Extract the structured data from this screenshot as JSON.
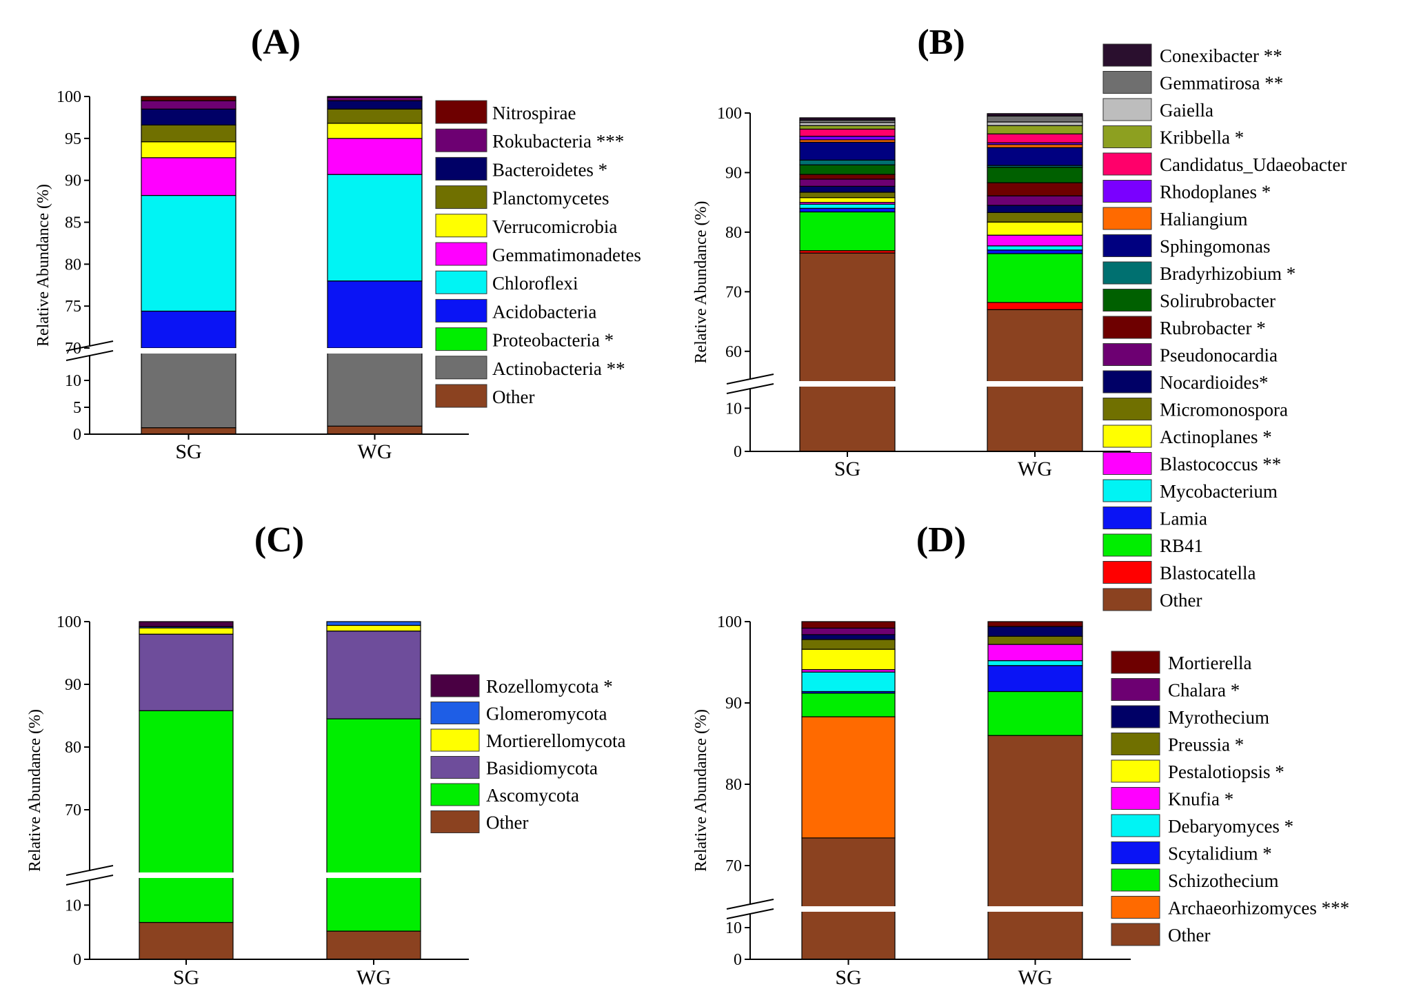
{
  "chart_data": [
    {
      "panel": "A",
      "type": "bar",
      "stacked": true,
      "title": "(A)",
      "ylabel": "Relative Abundance (%)",
      "xlabel": "",
      "categories": [
        "SG",
        "WG"
      ],
      "axis_break": {
        "lower_range": [
          0,
          15
        ],
        "upper_range": [
          70,
          100
        ]
      },
      "yticks_lower": [
        0,
        5,
        10
      ],
      "yticks_upper": [
        70,
        75,
        80,
        85,
        90,
        95,
        100
      ],
      "series": [
        {
          "name": "Other",
          "color": "#8B4220",
          "values": [
            1.2,
            1.5
          ]
        },
        {
          "name": "Actinobacteria **",
          "color": "#6F6F6F",
          "values": [
            64.5,
            64.5
          ]
        },
        {
          "name": "Proteobacteria *",
          "color": "#00EE00",
          "values": [
            0,
            0
          ]
        },
        {
          "name": "Acidobacteria",
          "color": "#0A14F5",
          "values": [
            8.7,
            12
          ]
        },
        {
          "name": "Chloroflexi",
          "color": "#00F4F4",
          "values": [
            13.8,
            12.7
          ]
        },
        {
          "name": "Gemmatimonadetes",
          "color": "#FF00FF",
          "values": [
            4.5,
            4.3
          ]
        },
        {
          "name": "Verrucomicrobia",
          "color": "#FFFF00",
          "values": [
            1.9,
            1.8
          ]
        },
        {
          "name": "Planctomycetes",
          "color": "#707000",
          "values": [
            2.0,
            1.7
          ]
        },
        {
          "name": "Bacteroidetes *",
          "color": "#000066",
          "values": [
            1.9,
            1.0
          ]
        },
        {
          "name": "Rokubacteria ***",
          "color": "#6D0072",
          "values": [
            1.0,
            0.4
          ]
        },
        {
          "name": "Nitrospirae",
          "color": "#6E0000",
          "values": [
            0.5,
            0.1
          ]
        }
      ]
    },
    {
      "panel": "B",
      "type": "bar",
      "stacked": true,
      "title": "(B)",
      "ylabel": "Relative Abundance (%)",
      "xlabel": "",
      "categories": [
        "SG",
        "WG"
      ],
      "axis_break": {
        "lower_range": [
          0,
          15
        ],
        "upper_range": [
          55,
          100
        ]
      },
      "yticks_lower": [
        0,
        10
      ],
      "yticks_upper": [
        60,
        70,
        80,
        90,
        100
      ],
      "series": [
        {
          "name": "Other",
          "color": "#8B4220",
          "values": [
            76.5,
            67
          ]
        },
        {
          "name": "Blastocatella",
          "color": "#FF0000",
          "values": [
            0.4,
            1.2
          ]
        },
        {
          "name": "RB41",
          "color": "#00EE00",
          "values": [
            6.5,
            8.2
          ]
        },
        {
          "name": "Lamia",
          "color": "#0A14F5",
          "values": [
            0.6,
            0.6
          ]
        },
        {
          "name": "Mycobacterium",
          "color": "#00F4F4",
          "values": [
            0.7,
            0.7
          ]
        },
        {
          "name": "Blastococcus **",
          "color": "#FF00FF",
          "values": [
            0.3,
            1.8
          ]
        },
        {
          "name": "Actinoplanes *",
          "color": "#FFFF00",
          "values": [
            0.8,
            2.2
          ]
        },
        {
          "name": "Micromonospora",
          "color": "#707000",
          "values": [
            0.9,
            1.6
          ]
        },
        {
          "name": "Nocardioides*",
          "color": "#000066",
          "values": [
            1.0,
            1.2
          ]
        },
        {
          "name": "Pseudonocardia",
          "color": "#6D0072",
          "values": [
            1.2,
            1.6
          ]
        },
        {
          "name": "Rubrobacter *",
          "color": "#6E0000",
          "values": [
            0.8,
            2.2
          ]
        },
        {
          "name": "Solirubrobacter",
          "color": "#006000",
          "values": [
            1.6,
            2.6
          ]
        },
        {
          "name": "Bradyrhizobium *",
          "color": "#007070",
          "values": [
            0.8,
            0.3
          ]
        },
        {
          "name": "Sphingomonas",
          "color": "#000080",
          "values": [
            3.0,
            3.0
          ]
        },
        {
          "name": "Haliangium",
          "color": "#FF6A00",
          "values": [
            0.4,
            0.5
          ]
        },
        {
          "name": "Rhodoplanes *",
          "color": "#7A00FF",
          "values": [
            0.6,
            0.3
          ]
        },
        {
          "name": "Candidatus_Udaeobacter",
          "color": "#FF006A",
          "values": [
            1.2,
            1.5
          ]
        },
        {
          "name": "Kribbella *",
          "color": "#8DA020",
          "values": [
            0.6,
            1.4
          ]
        },
        {
          "name": "Gaiella",
          "color": "#BDBDBD",
          "values": [
            0.5,
            0.6
          ]
        },
        {
          "name": "Gemmatirosa **",
          "color": "#6F6F6F",
          "values": [
            0.4,
            1.0
          ]
        },
        {
          "name": "Conexibacter **",
          "color": "#2A0F2E",
          "values": [
            0.4,
            0.4
          ]
        }
      ]
    },
    {
      "panel": "C",
      "type": "bar",
      "stacked": true,
      "title": "(C)",
      "ylabel": "Relative Abundance (%)",
      "xlabel": "",
      "categories": [
        "SG",
        "WG"
      ],
      "axis_break": {
        "lower_range": [
          0,
          15
        ],
        "upper_range": [
          60,
          100
        ]
      },
      "yticks_lower": [
        0,
        10
      ],
      "yticks_upper": [
        70,
        80,
        90,
        100
      ],
      "series": [
        {
          "name": "Other",
          "color": "#8B4220",
          "values": [
            6.8,
            5.2
          ]
        },
        {
          "name": "Ascomycota",
          "color": "#00EE00",
          "values": [
            79.0,
            79.3
          ]
        },
        {
          "name": "Basidiomycota",
          "color": "#6E4D9B",
          "values": [
            12.2,
            14.0
          ]
        },
        {
          "name": "Mortierellomycota",
          "color": "#FFFF00",
          "values": [
            1.0,
            0.9
          ]
        },
        {
          "name": "Glomeromycota",
          "color": "#1E5EE6",
          "values": [
            0.2,
            0.6
          ]
        },
        {
          "name": "Rozellomycota *",
          "color": "#4A0043",
          "values": [
            0.8,
            0
          ]
        }
      ]
    },
    {
      "panel": "D",
      "type": "bar",
      "stacked": true,
      "title": "(D)",
      "ylabel": "Relative Abundance (%)",
      "xlabel": "",
      "categories": [
        "SG",
        "WG"
      ],
      "axis_break": {
        "lower_range": [
          0,
          15
        ],
        "upper_range": [
          65,
          100
        ]
      },
      "yticks_lower": [
        0,
        10
      ],
      "yticks_upper": [
        70,
        80,
        90,
        100
      ],
      "series": [
        {
          "name": "Other",
          "color": "#8B4220",
          "values": [
            73.4,
            86.0
          ]
        },
        {
          "name": "Archaeorhizomyces ***",
          "color": "#FF6A00",
          "values": [
            14.9,
            0
          ]
        },
        {
          "name": "Schizothecium",
          "color": "#00EE00",
          "values": [
            2.9,
            5.4
          ]
        },
        {
          "name": "Scytalidium *",
          "color": "#0A14F5",
          "values": [
            0.2,
            3.2
          ]
        },
        {
          "name": "Debaryomyces *",
          "color": "#00F4F4",
          "values": [
            2.4,
            0.6
          ]
        },
        {
          "name": "Knufia *",
          "color": "#FF00FF",
          "values": [
            0.3,
            2.0
          ]
        },
        {
          "name": "Pestalotiopsis *",
          "color": "#FFFF00",
          "values": [
            2.5,
            0
          ]
        },
        {
          "name": "Preussia *",
          "color": "#707000",
          "values": [
            1.2,
            1.0
          ]
        },
        {
          "name": "Myrothecium",
          "color": "#000066",
          "values": [
            0.6,
            1.2
          ]
        },
        {
          "name": "Chalara *",
          "color": "#6D0072",
          "values": [
            0.8,
            0
          ]
        },
        {
          "name": "Mortierella",
          "color": "#6E0000",
          "values": [
            0.8,
            0.6
          ]
        }
      ]
    }
  ]
}
